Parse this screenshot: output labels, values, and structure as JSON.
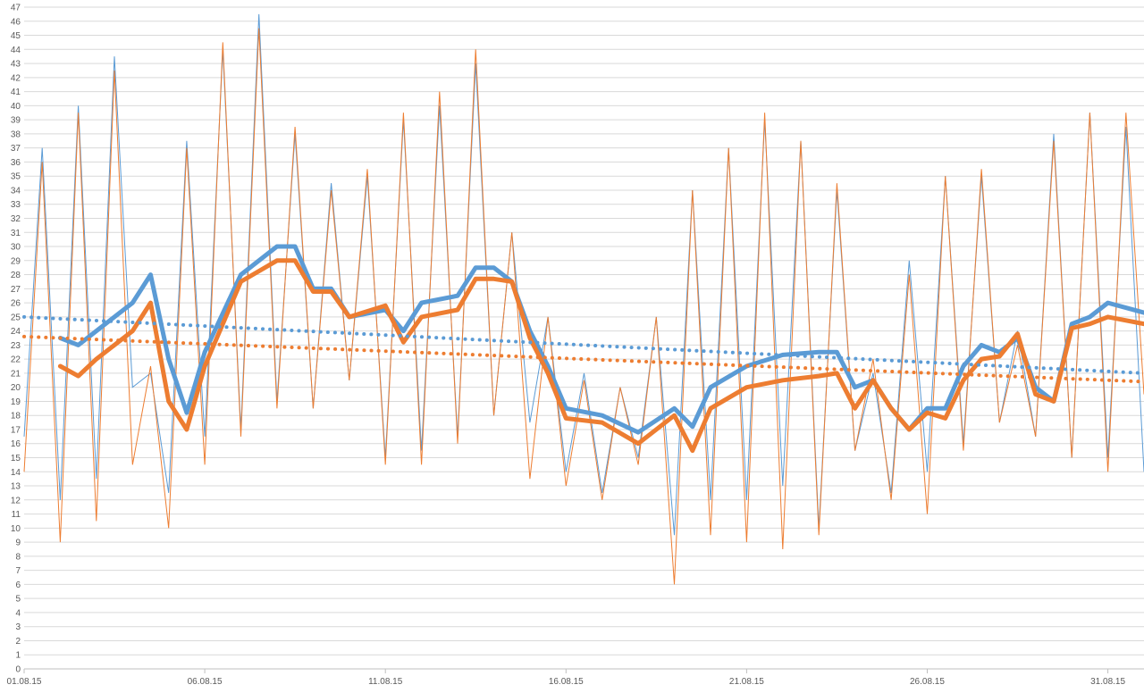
{
  "chart_data": {
    "type": "line",
    "title": "",
    "xlabel": "",
    "ylabel": "",
    "ylim": [
      0,
      47
    ],
    "xlim": [
      "01.08.15",
      "01.09.15"
    ],
    "y_ticks": [
      0,
      1,
      2,
      3,
      4,
      5,
      6,
      7,
      8,
      9,
      10,
      11,
      12,
      13,
      14,
      15,
      16,
      17,
      18,
      19,
      20,
      21,
      22,
      23,
      24,
      25,
      26,
      27,
      28,
      29,
      30,
      31,
      32,
      33,
      34,
      35,
      36,
      37,
      38,
      39,
      40,
      41,
      42,
      43,
      44,
      45,
      46,
      47
    ],
    "x_tick_labels": [
      "01.08.15",
      "06.08.15",
      "11.08.15",
      "16.08.15",
      "21.08.15",
      "26.08.15",
      "31.08.15"
    ],
    "grid": "horizontal",
    "legend": "none",
    "colors": {
      "blue": "#5b9bd5",
      "orange": "#ed7d31"
    },
    "series": [
      {
        "color": "blue",
        "style": "thin",
        "x": [
          "01.08.15",
          "01.08.15 12h",
          "02.08.15",
          "02.08.15 12h",
          "03.08.15",
          "03.08.15 12h",
          "04.08.15",
          "04.08.15 12h",
          "05.08.15",
          "05.08.15 12h",
          "06.08.15",
          "06.08.15 12h",
          "07.08.15",
          "07.08.15 12h",
          "08.08.15",
          "08.08.15 12h",
          "09.08.15",
          "09.08.15 12h",
          "10.08.15",
          "10.08.15 12h",
          "11.08.15",
          "11.08.15 12h",
          "12.08.15",
          "12.08.15 12h",
          "13.08.15",
          "13.08.15 12h",
          "14.08.15",
          "14.08.15 12h",
          "15.08.15",
          "15.08.15 12h",
          "16.08.15",
          "16.08.15 12h",
          "17.08.15",
          "17.08.15 12h",
          "18.08.15",
          "18.08.15 12h",
          "19.08.15",
          "19.08.15 12h",
          "20.08.15",
          "20.08.15 12h",
          "21.08.15",
          "21.08.15 12h",
          "22.08.15",
          "22.08.15 12h",
          "23.08.15",
          "23.08.15 12h",
          "24.08.15",
          "24.08.15 12h",
          "25.08.15",
          "25.08.15 12h",
          "26.08.15",
          "26.08.15 12h",
          "27.08.15",
          "27.08.15 12h",
          "28.08.15",
          "28.08.15 12h",
          "29.08.15",
          "29.08.15 12h",
          "30.08.15",
          "30.08.15 12h",
          "31.08.15",
          "31.08.15 12h",
          "01.09.15"
        ],
        "values": [
          16.5,
          37,
          12,
          40,
          13.5,
          43.5,
          20,
          21,
          12.5,
          37.5,
          16.5,
          44,
          17,
          46.5,
          19,
          38,
          18.5,
          34.5,
          20.5,
          35,
          15,
          39,
          15.5,
          40,
          16.5,
          43,
          18,
          31,
          17.5,
          25,
          14,
          21,
          12.5,
          20,
          15,
          25,
          9.5,
          34,
          12,
          37,
          12,
          39,
          13,
          37.5,
          10,
          34,
          15.5,
          21,
          12.5,
          29,
          14,
          35,
          16,
          35,
          17.5,
          24,
          16.5,
          38,
          15,
          39.5,
          15,
          38.5,
          14
        ]
      },
      {
        "color": "orange",
        "style": "thin",
        "x": [
          "01.08.15",
          "01.08.15 12h",
          "02.08.15",
          "02.08.15 12h",
          "03.08.15",
          "03.08.15 12h",
          "04.08.15",
          "04.08.15 12h",
          "05.08.15",
          "05.08.15 12h",
          "06.08.15",
          "06.08.15 12h",
          "07.08.15",
          "07.08.15 12h",
          "08.08.15",
          "08.08.15 12h",
          "09.08.15",
          "09.08.15 12h",
          "10.08.15",
          "10.08.15 12h",
          "11.08.15",
          "11.08.15 12h",
          "12.08.15",
          "12.08.15 12h",
          "13.08.15",
          "13.08.15 12h",
          "14.08.15",
          "14.08.15 12h",
          "15.08.15",
          "15.08.15 12h",
          "16.08.15",
          "16.08.15 12h",
          "17.08.15",
          "17.08.15 12h",
          "18.08.15",
          "18.08.15 12h",
          "19.08.15",
          "19.08.15 12h",
          "20.08.15",
          "20.08.15 12h",
          "21.08.15",
          "21.08.15 12h",
          "22.08.15",
          "22.08.15 12h",
          "23.08.15",
          "23.08.15 12h",
          "24.08.15",
          "24.08.15 12h",
          "25.08.15",
          "25.08.15 12h",
          "26.08.15",
          "26.08.15 12h",
          "27.08.15",
          "27.08.15 12h",
          "28.08.15",
          "28.08.15 12h",
          "29.08.15",
          "29.08.15 12h",
          "30.08.15",
          "30.08.15 12h",
          "31.08.15",
          "31.08.15 12h",
          "01.09.15"
        ],
        "values": [
          14,
          36,
          9,
          39.5,
          10.5,
          42.5,
          14.5,
          21.5,
          10,
          37,
          14.5,
          44.5,
          16.5,
          45.5,
          18.5,
          38.5,
          18.5,
          34,
          20.5,
          35.5,
          14.5,
          39.5,
          14.5,
          41,
          16,
          44,
          18,
          31,
          13.5,
          25,
          13,
          20.5,
          12,
          20,
          14.5,
          25,
          6,
          34,
          9.5,
          37,
          9,
          39.5,
          8.5,
          37.5,
          9.5,
          34.5,
          15.5,
          22,
          12,
          28,
          11,
          35,
          15.5,
          35.5,
          17.5,
          23,
          16.5,
          37.5,
          15,
          39.5,
          14,
          39.5,
          19.5
        ]
      },
      {
        "color": "blue",
        "style": "thick",
        "x": [
          "02.08.15",
          "02.08.15 12h",
          "03.08.15",
          "04.08.15",
          "04.08.15 12h",
          "05.08.15",
          "05.08.15 12h",
          "06.08.15",
          "07.08.15",
          "08.08.15",
          "08.08.15 12h",
          "09.08.15",
          "09.08.15 12h",
          "10.08.15",
          "11.08.15",
          "11.08.15 12h",
          "12.08.15",
          "13.08.15",
          "13.08.15 12h",
          "14.08.15",
          "14.08.15 12h",
          "15.08.15",
          "15.08.15 12h",
          "16.08.15",
          "17.08.15",
          "18.08.15",
          "19.08.15",
          "19.08.15 12h",
          "20.08.15",
          "21.08.15",
          "22.08.15",
          "23.08.15",
          "23.08.15 12h",
          "24.08.15",
          "24.08.15 12h",
          "25.08.15",
          "25.08.15 12h",
          "26.08.15",
          "26.08.15 12h",
          "27.08.15",
          "27.08.15 12h",
          "28.08.15",
          "28.08.15 12h",
          "29.08.15",
          "29.08.15 12h",
          "30.08.15",
          "30.08.15 12h",
          "31.08.15",
          "01.09.15"
        ],
        "values": [
          23.5,
          23,
          24,
          26,
          28,
          22,
          18.2,
          22.5,
          28,
          30,
          30,
          27,
          27,
          25,
          25.5,
          24,
          26,
          26.5,
          28.5,
          28.5,
          27.5,
          24,
          21.5,
          18.5,
          18,
          16.8,
          18.5,
          17.2,
          20,
          21.5,
          22.3,
          22.5,
          22.5,
          20,
          20.5,
          18.5,
          17,
          18.5,
          18.5,
          21.5,
          23,
          22.5,
          23.5,
          20,
          19,
          24.5,
          25,
          26,
          25.3
        ]
      },
      {
        "color": "orange",
        "style": "thick",
        "x": [
          "02.08.15",
          "02.08.15 12h",
          "03.08.15",
          "04.08.15",
          "04.08.15 12h",
          "05.08.15",
          "05.08.15 12h",
          "06.08.15",
          "07.08.15",
          "08.08.15",
          "08.08.15 12h",
          "09.08.15",
          "09.08.15 12h",
          "10.08.15",
          "11.08.15",
          "11.08.15 12h",
          "12.08.15",
          "13.08.15",
          "13.08.15 12h",
          "14.08.15",
          "14.08.15 12h",
          "15.08.15",
          "15.08.15 12h",
          "16.08.15",
          "17.08.15",
          "18.08.15",
          "19.08.15",
          "19.08.15 12h",
          "20.08.15",
          "21.08.15",
          "22.08.15",
          "23.08.15",
          "23.08.15 12h",
          "24.08.15",
          "24.08.15 12h",
          "25.08.15",
          "25.08.15 12h",
          "26.08.15",
          "26.08.15 12h",
          "27.08.15",
          "27.08.15 12h",
          "28.08.15",
          "28.08.15 12h",
          "29.08.15",
          "29.08.15 12h",
          "30.08.15",
          "30.08.15 12h",
          "31.08.15",
          "01.09.15"
        ],
        "values": [
          21.5,
          20.8,
          22,
          24,
          26,
          19,
          17,
          21.5,
          27.5,
          29,
          29,
          26.8,
          26.8,
          25,
          25.8,
          23.2,
          25,
          25.5,
          27.7,
          27.7,
          27.5,
          23.5,
          21,
          17.8,
          17.5,
          16,
          18,
          15.5,
          18.5,
          20,
          20.5,
          20.8,
          21,
          18.5,
          20.5,
          18.5,
          17,
          18.2,
          17.8,
          20.5,
          22,
          22.2,
          23.8,
          19.5,
          19,
          24.2,
          24.5,
          25,
          24.5
        ]
      },
      {
        "color": "blue",
        "style": "dotted-trend",
        "x": [
          "01.08.15",
          "01.09.15"
        ],
        "values": [
          25,
          21
        ]
      },
      {
        "color": "orange",
        "style": "dotted-trend",
        "x": [
          "01.08.15",
          "01.09.15"
        ],
        "values": [
          23.6,
          20.4
        ]
      }
    ]
  }
}
